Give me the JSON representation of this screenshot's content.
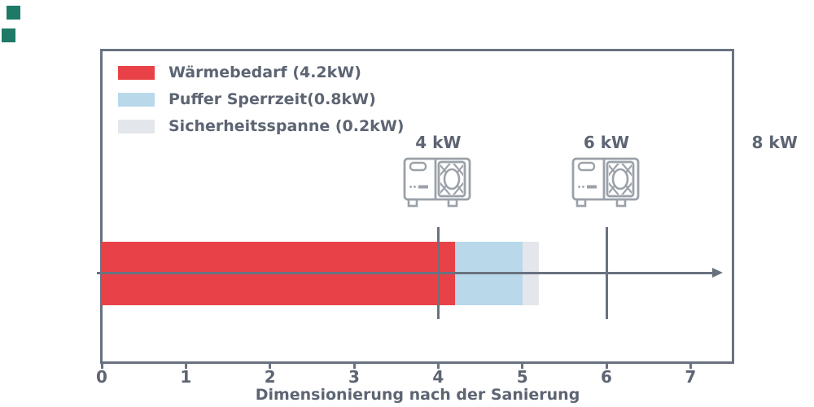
{
  "colors": {
    "axis": "#6a7280",
    "text": "#5d6573",
    "icon_gray": "#9ba1a9",
    "corner_green": "#1e7a66",
    "red": "#e84248",
    "light_blue": "#b9d9eb",
    "light_gray": "#e3e6ea"
  },
  "decorations": {
    "corner_squares": [
      {
        "name": "corner-square-1"
      },
      {
        "name": "corner-square-2"
      }
    ]
  },
  "chart_data": {
    "type": "bar",
    "orientation": "horizontal",
    "title": "",
    "xlabel": "Dimensionierung nach der Sanierung",
    "ylabel": "",
    "xlim": [
      0,
      7.5
    ],
    "x_ticks": [
      "0",
      "1",
      "2",
      "3",
      "4",
      "5",
      "6",
      "7"
    ],
    "x_tick_values": [
      0,
      1,
      2,
      3,
      4,
      5,
      6,
      7
    ],
    "grid": false,
    "legend_position": "upper left",
    "bar_start": 0,
    "series": [
      {
        "name": "Wärmebedarf (4.2kW)",
        "value": 4.2,
        "color": "#e84248"
      },
      {
        "name": "Puffer Sperrzeit(0.8kW)",
        "value": 0.8,
        "color": "#b9d9eb"
      },
      {
        "name": "Sicherheitsspanne (0.2kW)",
        "value": 0.2,
        "color": "#e3e6ea"
      }
    ],
    "markers": [
      {
        "value": 4,
        "label": "4 kW",
        "icon": "heat-pump-icon",
        "show_line": true
      },
      {
        "value": 6,
        "label": "6 kW",
        "icon": "heat-pump-icon",
        "show_line": true
      },
      {
        "value": 8,
        "label": "8 kW",
        "icon": null,
        "show_line": false
      }
    ]
  }
}
